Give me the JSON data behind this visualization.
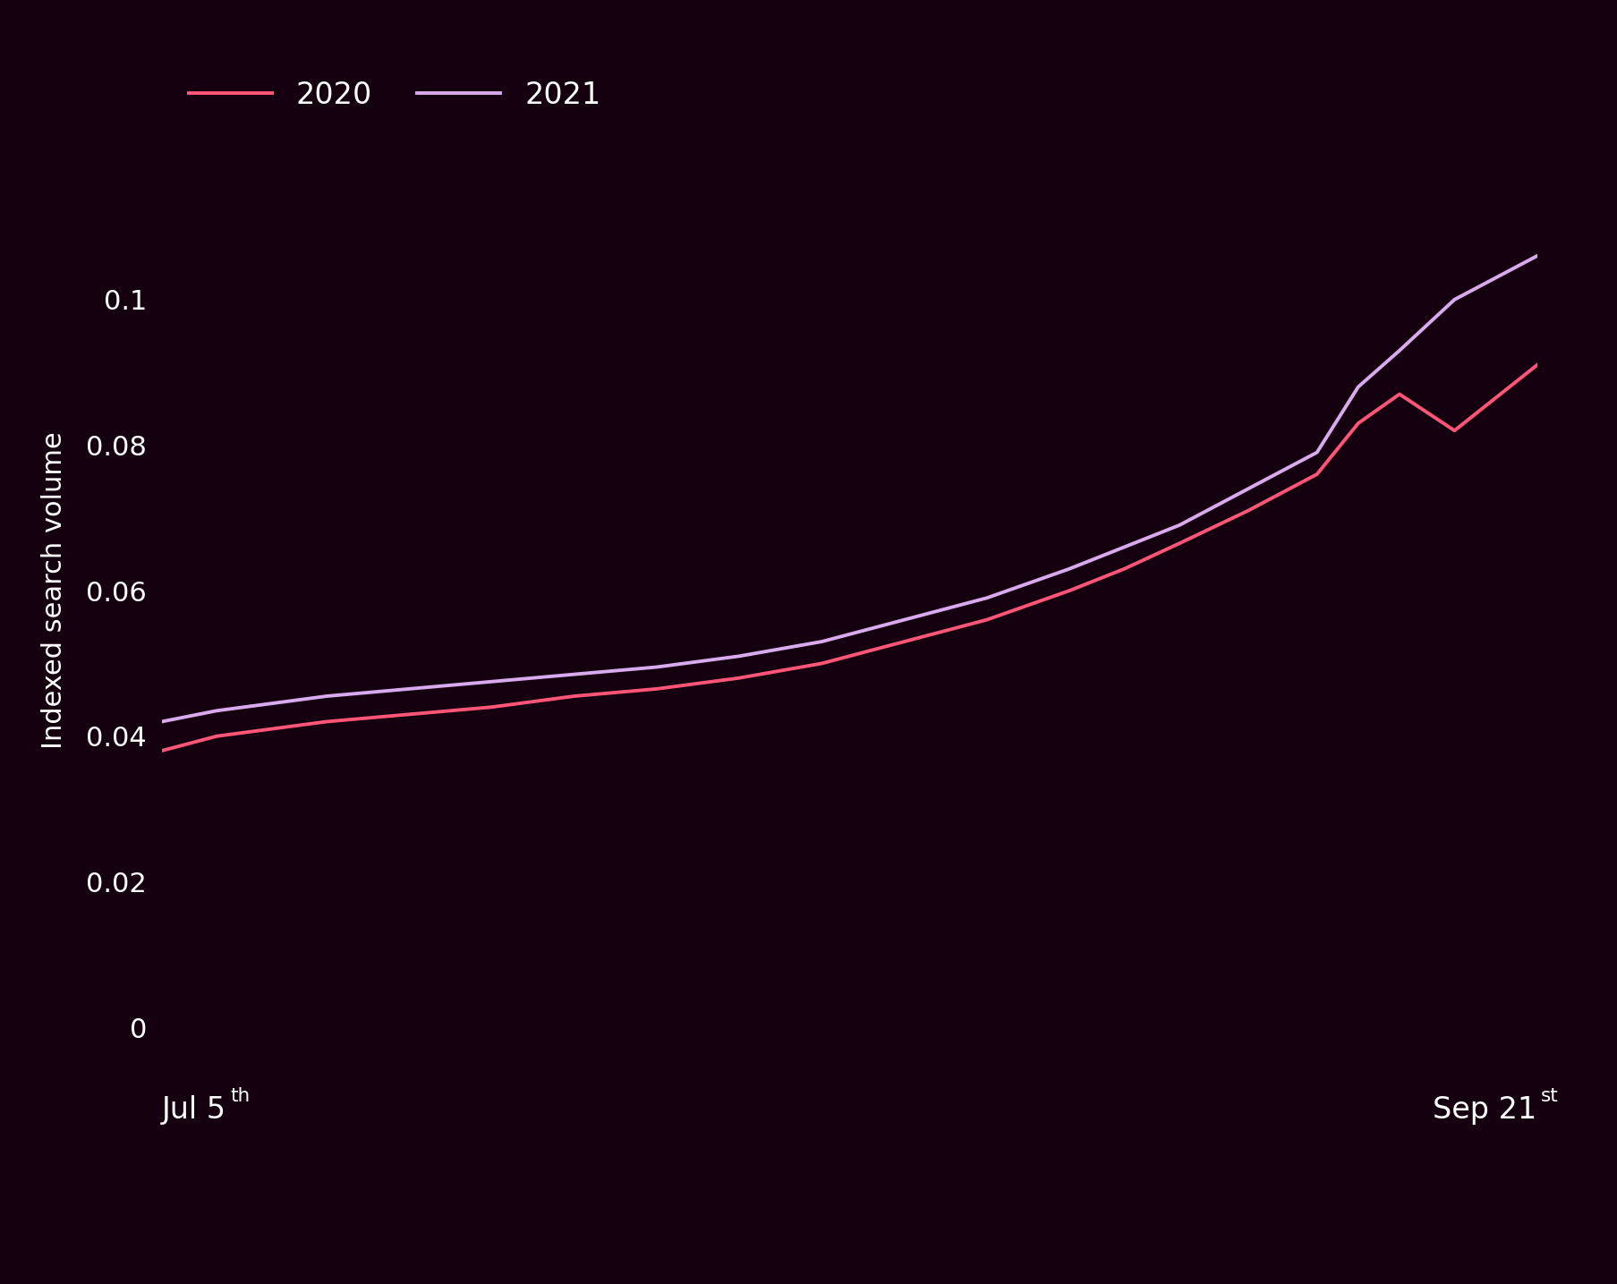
{
  "background_color": "#150010",
  "line_2020_color": "#ff5577",
  "line_2021_color": "#d9aaee",
  "line_width": 2.8,
  "ylabel": "Indexed search volume",
  "ylim": [
    0,
    0.12
  ],
  "yticks": [
    0,
    0.02,
    0.04,
    0.06,
    0.08,
    0.1
  ],
  "legend_labels": [
    "2020",
    "2021"
  ],
  "text_color": "#ffffff",
  "legend_fontsize": 24,
  "tick_fontsize": 22,
  "ylabel_fontsize": 22,
  "x_label_fontsize": 24,
  "x_2020": [
    0,
    0.04,
    0.08,
    0.12,
    0.18,
    0.24,
    0.3,
    0.36,
    0.42,
    0.48,
    0.54,
    0.6,
    0.66,
    0.7,
    0.74,
    0.79,
    0.84,
    0.87,
    0.9,
    0.94,
    1.0
  ],
  "y_2020": [
    0.038,
    0.04,
    0.041,
    0.042,
    0.043,
    0.044,
    0.0455,
    0.0465,
    0.048,
    0.05,
    0.053,
    0.056,
    0.06,
    0.063,
    0.0665,
    0.071,
    0.076,
    0.083,
    0.087,
    0.082,
    0.091
  ],
  "x_2021": [
    0,
    0.04,
    0.08,
    0.12,
    0.18,
    0.24,
    0.3,
    0.36,
    0.42,
    0.48,
    0.54,
    0.6,
    0.66,
    0.7,
    0.74,
    0.79,
    0.84,
    0.87,
    0.9,
    0.94,
    1.0
  ],
  "y_2021": [
    0.042,
    0.0435,
    0.0445,
    0.0455,
    0.0465,
    0.0475,
    0.0485,
    0.0495,
    0.051,
    0.053,
    0.056,
    0.059,
    0.063,
    0.066,
    0.069,
    0.074,
    0.079,
    0.088,
    0.093,
    0.1,
    0.106
  ]
}
